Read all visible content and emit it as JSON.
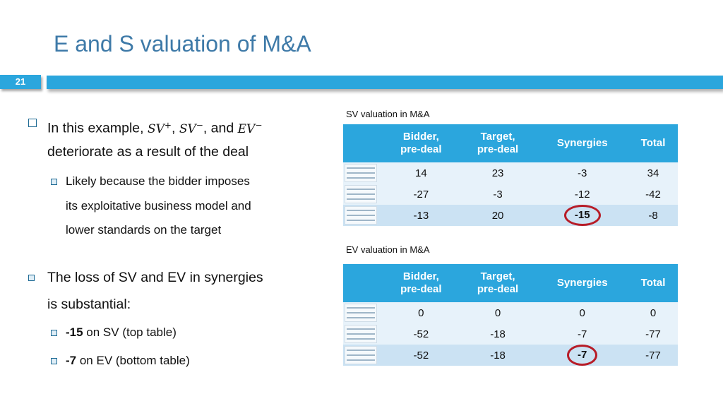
{
  "slide": {
    "title": "E and S valuation of M&A",
    "number": "21"
  },
  "bullets": {
    "b1_pre": "In this example, ",
    "b1_sv_plus": "SV",
    "b1_sep1": ", ",
    "b1_sv_minus": "SV",
    "b1_sep2": ", and ",
    "b1_ev_minus": "EV",
    "b1_line2": "deteriorate as a result of the deal",
    "b1_sub_line1": "Likely because the bidder imposes",
    "b1_sub_line2": "its exploitative business model and",
    "b1_sub_line3": "lower standards on the target",
    "b2_line1": "The loss of SV and EV in synergies",
    "b2_line2": "is substantial:",
    "b2_sub1_bold": "-15",
    "b2_sub1_rest": " on SV (top table)",
    "b2_sub2_bold": "-7",
    "b2_sub2_rest": " on EV (bottom table)"
  },
  "sv_table": {
    "caption": "SV valuation in M&A",
    "headers": [
      "Bidder, pre-deal",
      "Target, pre-deal",
      "Synergies",
      "Total"
    ],
    "rows": [
      [
        "14",
        "23",
        "-3",
        "34"
      ],
      [
        "-27",
        "-3",
        "-12",
        "-42"
      ],
      [
        "-13",
        "20",
        "-15",
        "-8"
      ]
    ],
    "highlight": "-15"
  },
  "ev_table": {
    "caption": "EV valuation in M&A",
    "headers": [
      "Bidder, pre-deal",
      "Target, pre-deal",
      "Synergies",
      "Total"
    ],
    "rows": [
      [
        "0",
        "0",
        "0",
        "0"
      ],
      [
        "-52",
        "-18",
        "-7",
        "-77"
      ],
      [
        "-52",
        "-18",
        "-7",
        "-77"
      ]
    ],
    "highlight": "-7"
  },
  "colors": {
    "accent": "#2ba6dd",
    "title": "#3e7aa8",
    "row_light": "#e7f2fa",
    "row_dark": "#cbe2f3",
    "highlight_ring": "#b71c27"
  }
}
